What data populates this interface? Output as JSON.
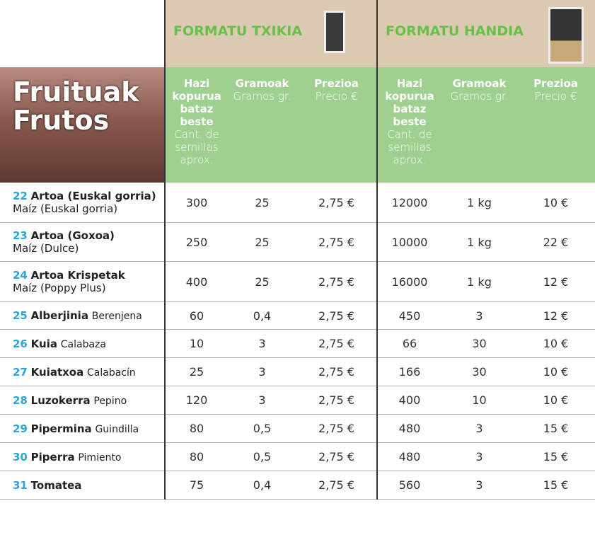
{
  "header": {
    "formats": [
      "FORMATU TXIKIA",
      "FORMATU HANDIA"
    ],
    "section": [
      "Fruituak",
      "Frutos"
    ],
    "columns": [
      {
        "title": "Hazi kopurua bataz beste",
        "subtitle": "Cant. de semillas aprox."
      },
      {
        "title": "Gramoak",
        "subtitle": "Gramos gr."
      },
      {
        "title": "Prezioa",
        "subtitle": "Precio €"
      }
    ]
  },
  "table": {
    "rows": [
      {
        "number": "22",
        "name": "Artoa (Euskal gorria)",
        "subname": "Maíz (Euskal gorria)",
        "cells": [
          "300",
          "25",
          "2,75 €",
          "12000",
          "1 kg",
          "10 €"
        ]
      },
      {
        "number": "23",
        "name": "Artoa (Goxoa)",
        "subname": "Maíz (Dulce)",
        "cells": [
          "250",
          "25",
          "2,75 €",
          "10000",
          "1 kg",
          "22 €"
        ]
      },
      {
        "number": "24",
        "name": "Artoa Krispetak",
        "subname": "Maíz (Poppy Plus)",
        "cells": [
          "400",
          "25",
          "2,75 €",
          "16000",
          "1 kg",
          "12 €"
        ]
      },
      {
        "number": "25",
        "name": "Alberjinia",
        "subname": "Berenjena",
        "cells": [
          "60",
          "0,4",
          "2,75 €",
          "450",
          "3",
          "12 €"
        ]
      },
      {
        "number": "26",
        "name": "Kuia",
        "subname": "Calabaza",
        "cells": [
          "10",
          "3",
          "2,75 €",
          "66",
          "30",
          "10 €"
        ]
      },
      {
        "number": "27",
        "name": "Kuiatxoa",
        "subname": "Calabacín",
        "cells": [
          "25",
          "3",
          "2,75 €",
          "166",
          "30",
          "10 €"
        ]
      },
      {
        "number": "28",
        "name": "Luzokerra",
        "subname": "Pepino",
        "cells": [
          "120",
          "3",
          "2,75 €",
          "400",
          "10",
          "10 €"
        ]
      },
      {
        "number": "29",
        "name": "Pipermina",
        "subname": "Guindilla",
        "cells": [
          "80",
          "0,5",
          "2,75 €",
          "480",
          "3",
          "15 €"
        ]
      },
      {
        "number": "30",
        "name": "Piperra",
        "subname": "Pimiento",
        "cells": [
          "80",
          "0,5",
          "2,75 €",
          "480",
          "3",
          "15 €"
        ]
      },
      {
        "number": "31",
        "name": "Tomatea",
        "subname": null,
        "cells": [
          "75",
          "0,4",
          "2,75 €",
          "560",
          "3",
          "15 €"
        ]
      }
    ]
  }
}
